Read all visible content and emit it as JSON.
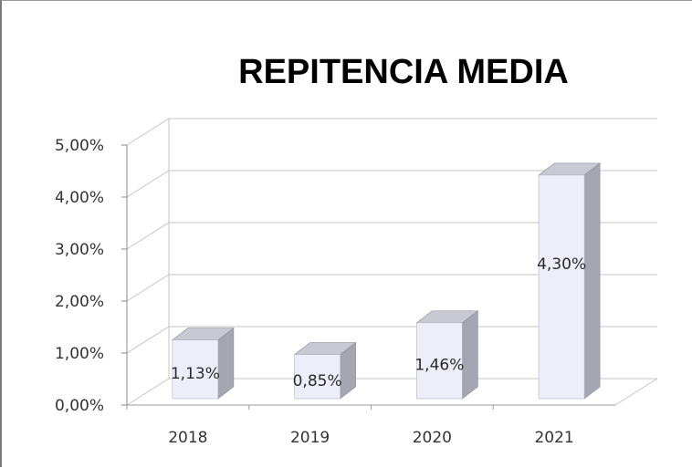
{
  "chart_data": {
    "type": "bar",
    "title": "REPITENCIA MEDIA",
    "categories": [
      "2018",
      "2019",
      "2020",
      "2021"
    ],
    "values": [
      1.13,
      0.85,
      1.46,
      4.3
    ],
    "data_labels": [
      "1,13%",
      "0,85%",
      "1,46%",
      "4,30%"
    ],
    "ytick_values": [
      0,
      1,
      2,
      3,
      4,
      5
    ],
    "ytick_labels": [
      "0,00%",
      "1,00%",
      "2,00%",
      "3,00%",
      "4,00%",
      "5,00%"
    ],
    "ylim": [
      0,
      5
    ],
    "grid": true,
    "legend": "none",
    "style": "3d-column",
    "colors": {
      "bar_front": "#eeeefa",
      "bar_side": "#a6a6b2",
      "bar_top": "#c9c9d3",
      "grid": "#c4c4c4",
      "wall": "#ffffff"
    }
  }
}
